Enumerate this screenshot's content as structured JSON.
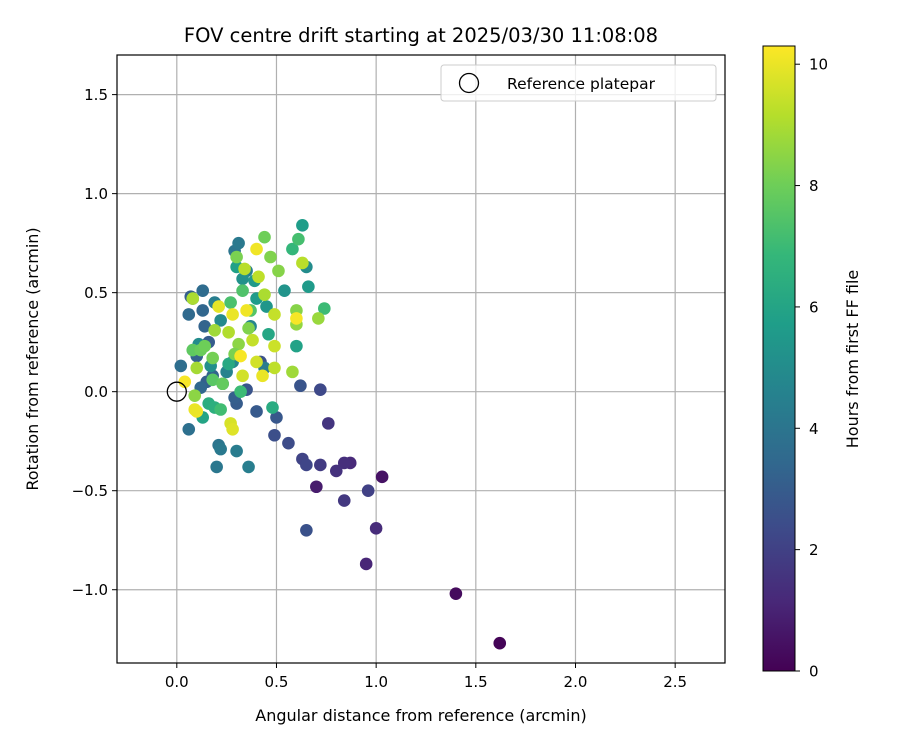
{
  "chart_data": {
    "type": "scatter",
    "title": "FOV centre drift starting at 2025/03/30 11:08:08",
    "xlabel": "Angular distance from reference (arcmin)",
    "ylabel": "Rotation from reference (arcmin)",
    "xlim": [
      -0.3,
      2.75
    ],
    "ylim": [
      -1.37,
      1.7
    ],
    "xticks": [
      0.0,
      0.5,
      1.0,
      1.5,
      2.0,
      2.5
    ],
    "xtick_labels": [
      "0.0",
      "0.5",
      "1.0",
      "1.5",
      "2.0",
      "2.5"
    ],
    "yticks": [
      -1.0,
      -0.5,
      0.0,
      0.5,
      1.0,
      1.5
    ],
    "ytick_labels": [
      "−1.0",
      "−0.5",
      "0.0",
      "0.5",
      "1.0",
      "1.5"
    ],
    "grid": true,
    "legend": {
      "placement": "upper right",
      "entries": [
        "Reference platepar"
      ]
    },
    "colorbar": {
      "label": "Hours from first FF file",
      "colormap": "viridis",
      "range": [
        0,
        10.3
      ],
      "ticks": [
        0,
        2,
        4,
        6,
        8,
        10
      ],
      "tick_labels": [
        "0",
        "2",
        "4",
        "6",
        "8",
        "10"
      ],
      "colors": [
        "#440154",
        "#482878",
        "#3e4989",
        "#31688e",
        "#26828e",
        "#1f9e89",
        "#35b779",
        "#6ece58",
        "#b5de2b",
        "#fde725"
      ]
    },
    "reference_point": {
      "label": "Reference platepar",
      "x": 0.0,
      "y": 0.0
    },
    "points": [
      {
        "x": 1.62,
        "y": -1.27,
        "hours": 0.1
      },
      {
        "x": 1.4,
        "y": -1.02,
        "hours": 0.3
      },
      {
        "x": 1.03,
        "y": -0.43,
        "hours": 0.5
      },
      {
        "x": 0.7,
        "y": -0.48,
        "hours": 0.8
      },
      {
        "x": 0.95,
        "y": -0.87,
        "hours": 1.1
      },
      {
        "x": 1.0,
        "y": -0.69,
        "hours": 1.3
      },
      {
        "x": 0.87,
        "y": -0.36,
        "hours": 1.2
      },
      {
        "x": 0.84,
        "y": -0.36,
        "hours": 1.4
      },
      {
        "x": 0.8,
        "y": -0.4,
        "hours": 1.5
      },
      {
        "x": 0.76,
        "y": -0.16,
        "hours": 1.6
      },
      {
        "x": 0.84,
        "y": -0.55,
        "hours": 1.7
      },
      {
        "x": 0.72,
        "y": -0.37,
        "hours": 1.8
      },
      {
        "x": 0.96,
        "y": -0.5,
        "hours": 2.0
      },
      {
        "x": 0.63,
        "y": -0.34,
        "hours": 2.1
      },
      {
        "x": 0.65,
        "y": -0.37,
        "hours": 2.2
      },
      {
        "x": 0.72,
        "y": 0.01,
        "hours": 2.3
      },
      {
        "x": 0.56,
        "y": -0.26,
        "hours": 2.4
      },
      {
        "x": 0.65,
        "y": -0.7,
        "hours": 2.6
      },
      {
        "x": 0.62,
        "y": 0.03,
        "hours": 2.7
      },
      {
        "x": 0.49,
        "y": -0.22,
        "hours": 2.5
      },
      {
        "x": 0.4,
        "y": -0.1,
        "hours": 2.9
      },
      {
        "x": 0.5,
        "y": -0.13,
        "hours": 2.8
      },
      {
        "x": 0.42,
        "y": 0.15,
        "hours": 2.6
      },
      {
        "x": 0.35,
        "y": 0.01,
        "hours": 2.7
      },
      {
        "x": 0.3,
        "y": -0.06,
        "hours": 3.0
      },
      {
        "x": 0.29,
        "y": -0.03,
        "hours": 3.1
      },
      {
        "x": 0.23,
        "y": 0.04,
        "hours": 3.2
      },
      {
        "x": 0.15,
        "y": 0.05,
        "hours": 3.1
      },
      {
        "x": 0.18,
        "y": 0.08,
        "hours": 3.3
      },
      {
        "x": 0.12,
        "y": 0.02,
        "hours": 3.4
      },
      {
        "x": 0.1,
        "y": 0.18,
        "hours": 3.2
      },
      {
        "x": 0.16,
        "y": 0.25,
        "hours": 3.0
      },
      {
        "x": 0.07,
        "y": 0.48,
        "hours": 3.1
      },
      {
        "x": 0.06,
        "y": 0.39,
        "hours": 3.5
      },
      {
        "x": 0.13,
        "y": 0.51,
        "hours": 3.6
      },
      {
        "x": 0.13,
        "y": 0.41,
        "hours": 3.4
      },
      {
        "x": 0.14,
        "y": 0.33,
        "hours": 3.3
      },
      {
        "x": 0.02,
        "y": 0.13,
        "hours": 3.7
      },
      {
        "x": 0.06,
        "y": -0.19,
        "hours": 3.8
      },
      {
        "x": 0.21,
        "y": -0.27,
        "hours": 4.0
      },
      {
        "x": 0.22,
        "y": -0.29,
        "hours": 4.2
      },
      {
        "x": 0.2,
        "y": -0.38,
        "hours": 4.1
      },
      {
        "x": 0.3,
        "y": -0.3,
        "hours": 4.3
      },
      {
        "x": 0.36,
        "y": -0.38,
        "hours": 4.4
      },
      {
        "x": 0.29,
        "y": 0.71,
        "hours": 4.0
      },
      {
        "x": 0.31,
        "y": 0.75,
        "hours": 4.2
      },
      {
        "x": 0.35,
        "y": 0.61,
        "hours": 4.5
      },
      {
        "x": 0.25,
        "y": 0.1,
        "hours": 4.6
      },
      {
        "x": 0.28,
        "y": 0.15,
        "hours": 4.8
      },
      {
        "x": 0.37,
        "y": 0.33,
        "hours": 4.7
      },
      {
        "x": 0.44,
        "y": 0.12,
        "hours": 4.3
      },
      {
        "x": 0.19,
        "y": 0.45,
        "hours": 4.4
      },
      {
        "x": 0.22,
        "y": 0.36,
        "hours": 4.9
      },
      {
        "x": 0.11,
        "y": 0.24,
        "hours": 5.0
      },
      {
        "x": 0.17,
        "y": 0.13,
        "hours": 5.1
      },
      {
        "x": 0.08,
        "y": 0.47,
        "hours": 4.6
      },
      {
        "x": 0.33,
        "y": 0.57,
        "hours": 5.2
      },
      {
        "x": 0.39,
        "y": 0.56,
        "hours": 5.5
      },
      {
        "x": 0.3,
        "y": 0.63,
        "hours": 5.8
      },
      {
        "x": 0.4,
        "y": 0.47,
        "hours": 5.6
      },
      {
        "x": 0.45,
        "y": 0.43,
        "hours": 5.4
      },
      {
        "x": 0.54,
        "y": 0.51,
        "hours": 5.3
      },
      {
        "x": 0.63,
        "y": 0.84,
        "hours": 5.7
      },
      {
        "x": 0.65,
        "y": 0.63,
        "hours": 5.0
      },
      {
        "x": 0.66,
        "y": 0.53,
        "hours": 5.6
      },
      {
        "x": 0.6,
        "y": 0.23,
        "hours": 5.9
      },
      {
        "x": 0.46,
        "y": 0.29,
        "hours": 6.1
      },
      {
        "x": 0.48,
        "y": -0.08,
        "hours": 6.3
      },
      {
        "x": 0.13,
        "y": -0.13,
        "hours": 6.0
      },
      {
        "x": 0.16,
        "y": -0.06,
        "hours": 6.4
      },
      {
        "x": 0.19,
        "y": -0.08,
        "hours": 6.5
      },
      {
        "x": 0.26,
        "y": 0.14,
        "hours": 6.2
      },
      {
        "x": 0.58,
        "y": 0.72,
        "hours": 6.8
      },
      {
        "x": 0.74,
        "y": 0.42,
        "hours": 7.0
      },
      {
        "x": 0.61,
        "y": 0.77,
        "hours": 7.2
      },
      {
        "x": 0.22,
        "y": -0.09,
        "hours": 7.1
      },
      {
        "x": 0.32,
        "y": 0.0,
        "hours": 7.0
      },
      {
        "x": 0.33,
        "y": 0.51,
        "hours": 7.4
      },
      {
        "x": 0.37,
        "y": 0.41,
        "hours": 7.5
      },
      {
        "x": 0.27,
        "y": 0.45,
        "hours": 7.3
      },
      {
        "x": 0.18,
        "y": 0.06,
        "hours": 7.6
      },
      {
        "x": 0.23,
        "y": 0.04,
        "hours": 7.8
      },
      {
        "x": 0.08,
        "y": 0.21,
        "hours": 7.7
      },
      {
        "x": 0.12,
        "y": 0.21,
        "hours": 7.9
      },
      {
        "x": 0.14,
        "y": 0.23,
        "hours": 8.0
      },
      {
        "x": 0.18,
        "y": 0.17,
        "hours": 8.1
      },
      {
        "x": 0.3,
        "y": 0.68,
        "hours": 8.2
      },
      {
        "x": 0.44,
        "y": 0.78,
        "hours": 8.0
      },
      {
        "x": 0.47,
        "y": 0.68,
        "hours": 8.3
      },
      {
        "x": 0.51,
        "y": 0.61,
        "hours": 8.4
      },
      {
        "x": 0.36,
        "y": 0.32,
        "hours": 8.3
      },
      {
        "x": 0.31,
        "y": 0.24,
        "hours": 8.5
      },
      {
        "x": 0.29,
        "y": 0.19,
        "hours": 8.2
      },
      {
        "x": 0.6,
        "y": 0.34,
        "hours": 8.6
      },
      {
        "x": 0.6,
        "y": 0.41,
        "hours": 8.4
      },
      {
        "x": 0.58,
        "y": 0.1,
        "hours": 8.8
      },
      {
        "x": 0.71,
        "y": 0.37,
        "hours": 8.7
      },
      {
        "x": 0.1,
        "y": 0.12,
        "hours": 8.9
      },
      {
        "x": 0.09,
        "y": -0.02,
        "hours": 8.5
      },
      {
        "x": 0.08,
        "y": 0.47,
        "hours": 9.0
      },
      {
        "x": 0.19,
        "y": 0.31,
        "hours": 8.8
      },
      {
        "x": 0.26,
        "y": 0.3,
        "hours": 9.1
      },
      {
        "x": 0.34,
        "y": 0.62,
        "hours": 9.2
      },
      {
        "x": 0.41,
        "y": 0.58,
        "hours": 9.3
      },
      {
        "x": 0.44,
        "y": 0.49,
        "hours": 9.0
      },
      {
        "x": 0.49,
        "y": 0.39,
        "hours": 9.4
      },
      {
        "x": 0.49,
        "y": 0.23,
        "hours": 9.5
      },
      {
        "x": 0.49,
        "y": 0.12,
        "hours": 9.3
      },
      {
        "x": 0.4,
        "y": 0.15,
        "hours": 9.6
      },
      {
        "x": 0.38,
        "y": 0.26,
        "hours": 9.4
      },
      {
        "x": 0.33,
        "y": 0.08,
        "hours": 9.6
      },
      {
        "x": 0.63,
        "y": 0.65,
        "hours": 9.2
      },
      {
        "x": 0.27,
        "y": -0.16,
        "hours": 9.7
      },
      {
        "x": 0.28,
        "y": -0.19,
        "hours": 9.8
      },
      {
        "x": 0.21,
        "y": 0.43,
        "hours": 9.9
      },
      {
        "x": 0.28,
        "y": 0.39,
        "hours": 10.0
      },
      {
        "x": 0.35,
        "y": 0.41,
        "hours": 10.1
      },
      {
        "x": 0.32,
        "y": 0.18,
        "hours": 10.2
      },
      {
        "x": 0.43,
        "y": 0.08,
        "hours": 10.0
      },
      {
        "x": 0.4,
        "y": 0.72,
        "hours": 10.1
      },
      {
        "x": 0.6,
        "y": 0.37,
        "hours": 10.2
      },
      {
        "x": 0.04,
        "y": 0.05,
        "hours": 10.2
      },
      {
        "x": 0.1,
        "y": -0.1,
        "hours": 10.1
      },
      {
        "x": 0.09,
        "y": -0.09,
        "hours": 10.0
      }
    ]
  }
}
